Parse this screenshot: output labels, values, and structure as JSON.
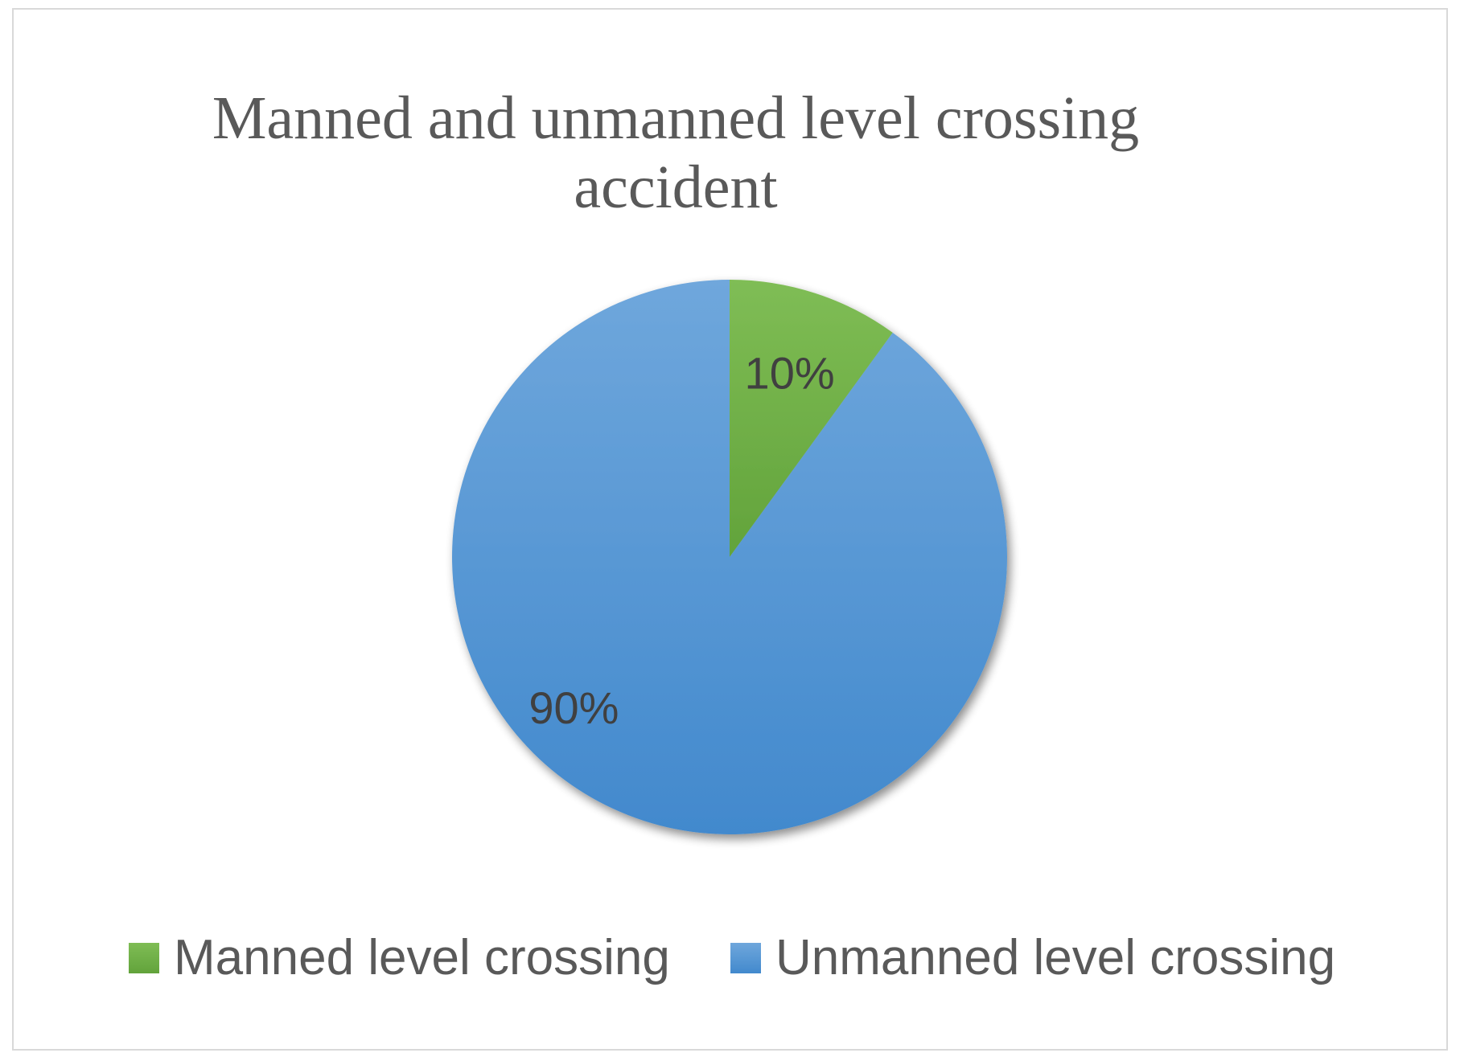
{
  "chart_data": {
    "type": "pie",
    "title_lines": [
      "Manned and unmanned level crossing",
      "accident"
    ],
    "categories": [
      "Manned level crossing",
      "Unmanned level crossing"
    ],
    "values": [
      10,
      90
    ],
    "data_labels": [
      "10%",
      "90%"
    ],
    "colors": [
      "#70ad47",
      "#5b9bd5"
    ],
    "legend_position": "bottom",
    "start_angle_deg": 0,
    "direction": "clockwise"
  }
}
